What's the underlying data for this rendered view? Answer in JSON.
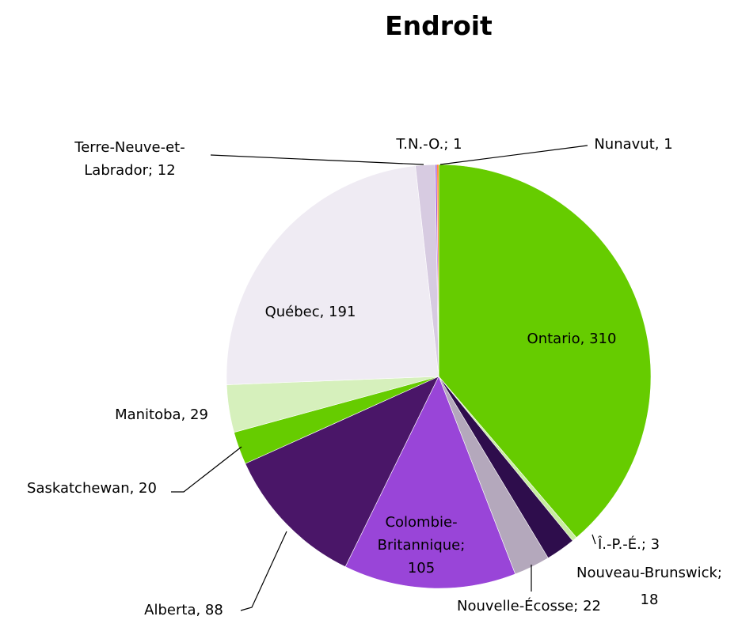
{
  "chart_data": {
    "type": "pie",
    "title": "Endroit",
    "labels": [
      "Ontario, 310",
      "Î.-P.-É.; 3",
      "Nouveau-Brunswick;\n18",
      "Nouvelle-Écosse; 22",
      "Colombie-\nBritannique;\n105",
      "Alberta, 88",
      "Saskatchewan, 20",
      "Manitoba, 29",
      "Québec, 191",
      "Terre-Neuve-et-\nLabrador; 12",
      "T.N.-O.; 1",
      "Nunavut, 1"
    ],
    "values": [
      310,
      3,
      18,
      22,
      105,
      88,
      20,
      29,
      191,
      12,
      1,
      1
    ],
    "colors": [
      "#66cc00",
      "#c8eea0",
      "#2e0d4c",
      "#b4a8bc",
      "#9945d8",
      "#4a1668",
      "#66cc00",
      "#d6f0bc",
      "#efebf3",
      "#d7cbe1",
      "#9945d8",
      "#ff6a00"
    ]
  }
}
